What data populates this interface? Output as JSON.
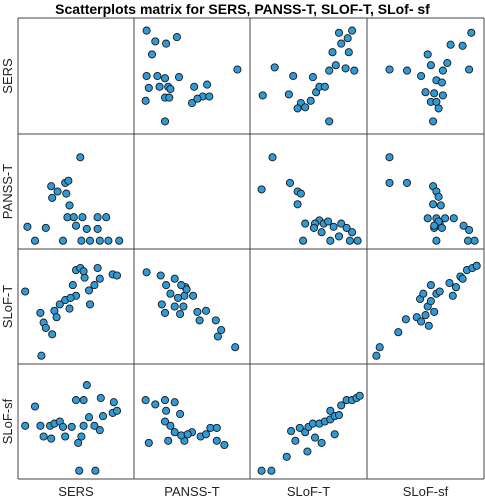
{
  "chart_data": {
    "type": "scatter",
    "title": "Scatterplots matrix for SERS, PANSS-T, SLOF-T, SLof- sf",
    "variables": [
      "SERS",
      "PANSS-T",
      "SLoF-T",
      "SLoF-sf"
    ],
    "diagonal": "empty",
    "grid": false,
    "cell_scale": [
      0,
      1
    ],
    "marker": {
      "shape": "circle",
      "fill": "#2e9ad8",
      "stroke": "#1a1a1a"
    },
    "pairs": [
      {
        "row": "SERS",
        "col": "PANSS-T",
        "points": [
          [
            0.08,
            0.92
          ],
          [
            0.36,
            0.86
          ],
          [
            0.16,
            0.82
          ],
          [
            0.26,
            0.8
          ],
          [
            0.13,
            0.7
          ],
          [
            0.08,
            0.5
          ],
          [
            0.18,
            0.5
          ],
          [
            0.25,
            0.48
          ],
          [
            0.38,
            0.49
          ],
          [
            0.1,
            0.39
          ],
          [
            0.2,
            0.4
          ],
          [
            0.28,
            0.4
          ],
          [
            0.3,
            0.38
          ],
          [
            0.07,
            0.27
          ],
          [
            0.25,
            0.3
          ],
          [
            0.29,
            0.3
          ],
          [
            0.52,
            0.4
          ],
          [
            0.64,
            0.42
          ],
          [
            0.92,
            0.56
          ],
          [
            0.6,
            0.31
          ],
          [
            0.5,
            0.25
          ],
          [
            0.55,
            0.29
          ],
          [
            0.66,
            0.31
          ],
          [
            0.25,
            0.08
          ]
        ]
      },
      {
        "row": "SERS",
        "col": "SLoF-T",
        "points": [
          [
            0.08,
            0.32
          ],
          [
            0.19,
            0.58
          ],
          [
            0.36,
            0.5
          ],
          [
            0.32,
            0.33
          ],
          [
            0.43,
            0.25
          ],
          [
            0.4,
            0.2
          ],
          [
            0.47,
            0.21
          ],
          [
            0.52,
            0.27
          ],
          [
            0.57,
            0.35
          ],
          [
            0.6,
            0.4
          ],
          [
            0.65,
            0.4
          ],
          [
            0.54,
            0.49
          ],
          [
            0.69,
            0.55
          ],
          [
            0.72,
            0.72
          ],
          [
            0.75,
            0.6
          ],
          [
            0.8,
            0.8
          ],
          [
            0.86,
            0.85
          ],
          [
            0.9,
            0.92
          ],
          [
            0.87,
            0.72
          ],
          [
            0.78,
            0.9
          ],
          [
            0.92,
            0.55
          ],
          [
            0.84,
            0.57
          ],
          [
            0.69,
            0.08
          ]
        ]
      },
      {
        "row": "SERS",
        "col": "SLoF-sf",
        "points": [
          [
            0.17,
            0.56
          ],
          [
            0.33,
            0.55
          ],
          [
            0.52,
            0.7
          ],
          [
            0.55,
            0.6
          ],
          [
            0.66,
            0.55
          ],
          [
            0.46,
            0.5
          ],
          [
            0.6,
            0.46
          ],
          [
            0.65,
            0.44
          ],
          [
            0.5,
            0.35
          ],
          [
            0.58,
            0.34
          ],
          [
            0.66,
            0.32
          ],
          [
            0.55,
            0.26
          ],
          [
            0.6,
            0.26
          ],
          [
            0.62,
            0.2
          ],
          [
            0.73,
            0.79
          ],
          [
            0.84,
            0.78
          ],
          [
            0.92,
            0.9
          ],
          [
            0.7,
            0.62
          ],
          [
            0.9,
            0.56
          ],
          [
            0.57,
            0.08
          ]
        ]
      },
      {
        "row": "PANSS-T",
        "col": "SERS",
        "points": [
          [
            0.54,
            0.82
          ],
          [
            0.27,
            0.55
          ],
          [
            0.4,
            0.58
          ],
          [
            0.43,
            0.6
          ],
          [
            0.33,
            0.5
          ],
          [
            0.41,
            0.48
          ],
          [
            0.44,
            0.37
          ],
          [
            0.28,
            0.44
          ],
          [
            0.42,
            0.26
          ],
          [
            0.48,
            0.26
          ],
          [
            0.56,
            0.26
          ],
          [
            0.7,
            0.26
          ],
          [
            0.78,
            0.26
          ],
          [
            0.7,
            0.15
          ],
          [
            0.6,
            0.15
          ],
          [
            0.5,
            0.18
          ],
          [
            0.22,
            0.16
          ],
          [
            0.12,
            0.04
          ],
          [
            0.38,
            0.04
          ],
          [
            0.55,
            0.04
          ],
          [
            0.63,
            0.04
          ],
          [
            0.72,
            0.04
          ],
          [
            0.8,
            0.04
          ],
          [
            0.9,
            0.04
          ],
          [
            0.05,
            0.17
          ]
        ]
      },
      {
        "row": "PANSS-T",
        "col": "SLoF-T",
        "points": [
          [
            0.17,
            0.82
          ],
          [
            0.07,
            0.52
          ],
          [
            0.33,
            0.58
          ],
          [
            0.4,
            0.5
          ],
          [
            0.43,
            0.48
          ],
          [
            0.4,
            0.38
          ],
          [
            0.6,
            0.23
          ],
          [
            0.64,
            0.2
          ],
          [
            0.47,
            0.2
          ],
          [
            0.56,
            0.2
          ],
          [
            0.68,
            0.22
          ],
          [
            0.8,
            0.2
          ],
          [
            0.73,
            0.17
          ],
          [
            0.9,
            0.12
          ],
          [
            0.78,
            0.08
          ],
          [
            0.88,
            0.04
          ],
          [
            0.95,
            0.04
          ],
          [
            0.7,
            0.04
          ],
          [
            0.45,
            0.04
          ],
          [
            0.55,
            0.16
          ],
          [
            0.62,
            0.12
          ],
          [
            0.85,
            0.16
          ]
        ]
      },
      {
        "row": "PANSS-T",
        "col": "SLoF-sf",
        "points": [
          [
            0.17,
            0.82
          ],
          [
            0.33,
            0.58
          ],
          [
            0.57,
            0.55
          ],
          [
            0.6,
            0.5
          ],
          [
            0.62,
            0.45
          ],
          [
            0.57,
            0.38
          ],
          [
            0.64,
            0.37
          ],
          [
            0.52,
            0.25
          ],
          [
            0.6,
            0.25
          ],
          [
            0.68,
            0.25
          ],
          [
            0.76,
            0.25
          ],
          [
            0.63,
            0.2
          ],
          [
            0.65,
            0.16
          ],
          [
            0.58,
            0.16
          ],
          [
            0.85,
            0.18
          ],
          [
            0.9,
            0.14
          ],
          [
            0.89,
            0.04
          ],
          [
            0.95,
            0.04
          ],
          [
            0.6,
            0.04
          ],
          [
            0.17,
            0.58
          ],
          [
            0.62,
            0.22
          ],
          [
            0.58,
            0.18
          ]
        ]
      },
      {
        "row": "SLoF-T",
        "col": "SERS",
        "points": [
          [
            0.03,
            0.64
          ],
          [
            0.2,
            0.35
          ],
          [
            0.17,
            0.44
          ],
          [
            0.3,
            0.46
          ],
          [
            0.35,
            0.52
          ],
          [
            0.4,
            0.56
          ],
          [
            0.44,
            0.48
          ],
          [
            0.32,
            0.4
          ],
          [
            0.5,
            0.6
          ],
          [
            0.45,
            0.58
          ],
          [
            0.62,
            0.65
          ],
          [
            0.67,
            0.7
          ],
          [
            0.72,
            0.76
          ],
          [
            0.7,
            0.86
          ],
          [
            0.84,
            0.8
          ],
          [
            0.88,
            0.79
          ],
          [
            0.58,
            0.77
          ],
          [
            0.5,
            0.84
          ],
          [
            0.54,
            0.86
          ],
          [
            0.57,
            0.83
          ],
          [
            0.28,
            0.24
          ],
          [
            0.22,
            0.3
          ],
          [
            0.47,
            0.7
          ],
          [
            0.63,
            0.52
          ],
          [
            0.18,
            0.04
          ]
        ]
      },
      {
        "row": "SLoF-T",
        "col": "PANSS-T",
        "points": [
          [
            0.08,
            0.82
          ],
          [
            0.21,
            0.79
          ],
          [
            0.26,
            0.7
          ],
          [
            0.34,
            0.76
          ],
          [
            0.44,
            0.68
          ],
          [
            0.43,
            0.6
          ],
          [
            0.3,
            0.62
          ],
          [
            0.37,
            0.58
          ],
          [
            0.45,
            0.66
          ],
          [
            0.51,
            0.6
          ],
          [
            0.34,
            0.5
          ],
          [
            0.25,
            0.44
          ],
          [
            0.39,
            0.43
          ],
          [
            0.63,
            0.46
          ],
          [
            0.57,
            0.37
          ],
          [
            0.72,
            0.37
          ],
          [
            0.77,
            0.28
          ],
          [
            0.74,
            0.22
          ],
          [
            0.9,
            0.12
          ],
          [
            0.4,
            0.7
          ],
          [
            0.42,
            0.5
          ],
          [
            0.55,
            0.45
          ],
          [
            0.22,
            0.52
          ]
        ]
      },
      {
        "row": "SLoF-T",
        "col": "SLoF-sf",
        "points": [
          [
            0.05,
            0.04
          ],
          [
            0.08,
            0.12
          ],
          [
            0.25,
            0.26
          ],
          [
            0.32,
            0.38
          ],
          [
            0.42,
            0.4
          ],
          [
            0.46,
            0.36
          ],
          [
            0.5,
            0.42
          ],
          [
            0.52,
            0.5
          ],
          [
            0.45,
            0.57
          ],
          [
            0.48,
            0.62
          ],
          [
            0.55,
            0.55
          ],
          [
            0.58,
            0.45
          ],
          [
            0.6,
            0.62
          ],
          [
            0.55,
            0.7
          ],
          [
            0.63,
            0.64
          ],
          [
            0.72,
            0.72
          ],
          [
            0.78,
            0.68
          ],
          [
            0.82,
            0.78
          ],
          [
            0.88,
            0.84
          ],
          [
            0.93,
            0.86
          ],
          [
            0.97,
            0.88
          ],
          [
            0.84,
            0.76
          ],
          [
            0.75,
            0.6
          ],
          [
            0.53,
            0.32
          ]
        ]
      },
      {
        "row": "SLoF-sf",
        "col": "SERS",
        "points": [
          [
            0.03,
            0.46
          ],
          [
            0.12,
            0.64
          ],
          [
            0.17,
            0.46
          ],
          [
            0.2,
            0.36
          ],
          [
            0.26,
            0.46
          ],
          [
            0.3,
            0.48
          ],
          [
            0.35,
            0.5
          ],
          [
            0.38,
            0.45
          ],
          [
            0.4,
            0.36
          ],
          [
            0.46,
            0.45
          ],
          [
            0.52,
            0.3
          ],
          [
            0.55,
            0.36
          ],
          [
            0.57,
            0.46
          ],
          [
            0.62,
            0.54
          ],
          [
            0.67,
            0.46
          ],
          [
            0.72,
            0.42
          ],
          [
            0.75,
            0.55
          ],
          [
            0.84,
            0.58
          ],
          [
            0.88,
            0.6
          ],
          [
            0.57,
            0.7
          ],
          [
            0.6,
            0.84
          ],
          [
            0.73,
            0.72
          ],
          [
            0.85,
            0.68
          ],
          [
            0.53,
            0.04
          ],
          [
            0.68,
            0.04
          ],
          [
            0.27,
            0.34
          ],
          [
            0.5,
            0.7
          ]
        ]
      },
      {
        "row": "SLoF-sf",
        "col": "PANSS-T",
        "points": [
          [
            0.07,
            0.7
          ],
          [
            0.16,
            0.66
          ],
          [
            0.25,
            0.7
          ],
          [
            0.34,
            0.68
          ],
          [
            0.39,
            0.57
          ],
          [
            0.25,
            0.5
          ],
          [
            0.3,
            0.46
          ],
          [
            0.26,
            0.6
          ],
          [
            0.28,
            0.32
          ],
          [
            0.43,
            0.32
          ],
          [
            0.5,
            0.4
          ],
          [
            0.58,
            0.36
          ],
          [
            0.67,
            0.44
          ],
          [
            0.73,
            0.44
          ],
          [
            0.8,
            0.28
          ],
          [
            0.1,
            0.3
          ],
          [
            0.34,
            0.4
          ],
          [
            0.4,
            0.37
          ],
          [
            0.63,
            0.38
          ],
          [
            0.73,
            0.32
          ],
          [
            0.46,
            0.38
          ]
        ]
      },
      {
        "row": "SLoF-sf",
        "col": "SLoF-T",
        "points": [
          [
            0.07,
            0.04
          ],
          [
            0.16,
            0.04
          ],
          [
            0.3,
            0.17
          ],
          [
            0.38,
            0.32
          ],
          [
            0.34,
            0.41
          ],
          [
            0.42,
            0.44
          ],
          [
            0.47,
            0.4
          ],
          [
            0.5,
            0.45
          ],
          [
            0.54,
            0.48
          ],
          [
            0.6,
            0.48
          ],
          [
            0.65,
            0.5
          ],
          [
            0.7,
            0.52
          ],
          [
            0.74,
            0.55
          ],
          [
            0.78,
            0.56
          ],
          [
            0.8,
            0.65
          ],
          [
            0.85,
            0.7
          ],
          [
            0.9,
            0.7
          ],
          [
            0.94,
            0.72
          ],
          [
            0.97,
            0.74
          ],
          [
            0.7,
            0.6
          ],
          [
            0.74,
            0.38
          ],
          [
            0.62,
            0.3
          ],
          [
            0.49,
            0.22
          ],
          [
            0.56,
            0.35
          ]
        ]
      }
    ]
  }
}
